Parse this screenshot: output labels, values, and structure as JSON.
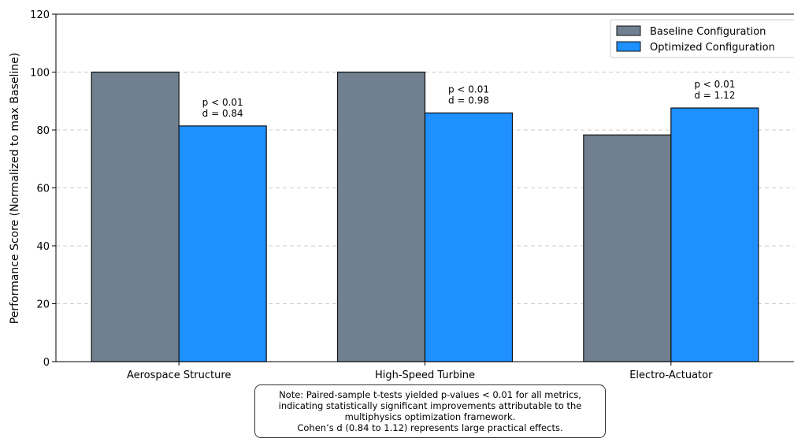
{
  "chart_data": {
    "type": "bar",
    "categories": [
      "Aerospace Structure",
      "High-Speed Turbine",
      "Electro-Actuator"
    ],
    "series": [
      {
        "name": "Baseline Configuration",
        "values": [
          100,
          100,
          78.3
        ],
        "color": "#708090"
      },
      {
        "name": "Optimized Configuration",
        "values": [
          81.4,
          85.9,
          87.6
        ],
        "color": "#1e90ff"
      }
    ],
    "annotations": [
      {
        "p": "p < 0.01",
        "d": "d = 0.84"
      },
      {
        "p": "p < 0.01",
        "d": "d = 0.98"
      },
      {
        "p": "p < 0.01",
        "d": "d = 1.12"
      }
    ],
    "ylabel": "Performance Score (Normalized to max Baseline)",
    "xlabel": "",
    "ylim": [
      0,
      120
    ],
    "yticks": [
      "0",
      "20",
      "40",
      "60",
      "80",
      "100",
      "120"
    ],
    "grid": "horizontal-dashed",
    "legend_position": "top-right"
  },
  "note": {
    "lines": [
      "Note: Paired-sample t-tests yielded p-values < 0.01 for all metrics,",
      "indicating statistically significant improvements attributable to the",
      "multiphysics optimization framework.",
      "Cohen’s d (0.84 to 1.12) represents large practical effects."
    ]
  }
}
